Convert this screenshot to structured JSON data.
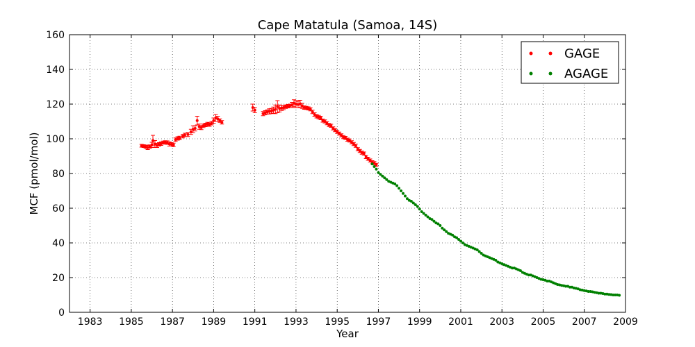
{
  "chart_data": {
    "type": "scatter",
    "title": "Cape Matatula (Samoa, 14S)",
    "xlabel": "Year",
    "ylabel": "MCF (pmol/mol)",
    "xlim": [
      1982.0,
      2009.0
    ],
    "ylim": [
      0,
      160
    ],
    "xticks": [
      "1983",
      "1985",
      "1987",
      "1989",
      "1991",
      "1993",
      "1995",
      "1997",
      "1999",
      "2001",
      "2003",
      "2005",
      "2007",
      "2009"
    ],
    "yticks": [
      "0",
      "20",
      "40",
      "60",
      "80",
      "100",
      "120",
      "140",
      "160"
    ],
    "grid": true,
    "legend_position": "top-right",
    "series": [
      {
        "name": "GAGE",
        "color": "#ff0000",
        "error_bars": true,
        "points": [
          {
            "x": 1985.5,
            "y": 96.0,
            "err": 0.8
          },
          {
            "x": 1985.6,
            "y": 95.8,
            "err": 0.8
          },
          {
            "x": 1985.7,
            "y": 95.4,
            "err": 1.0
          },
          {
            "x": 1985.8,
            "y": 95.0,
            "err": 1.2
          },
          {
            "x": 1985.9,
            "y": 95.5,
            "err": 1.0
          },
          {
            "x": 1986.0,
            "y": 96.5,
            "err": 1.5
          },
          {
            "x": 1986.05,
            "y": 99.0,
            "err": 3.0
          },
          {
            "x": 1986.15,
            "y": 97.0,
            "err": 2.0
          },
          {
            "x": 1986.25,
            "y": 96.2,
            "err": 1.2
          },
          {
            "x": 1986.35,
            "y": 96.8,
            "err": 1.0
          },
          {
            "x": 1986.45,
            "y": 97.2,
            "err": 1.0
          },
          {
            "x": 1986.55,
            "y": 97.8,
            "err": 0.9
          },
          {
            "x": 1986.65,
            "y": 98.0,
            "err": 0.9
          },
          {
            "x": 1986.75,
            "y": 97.8,
            "err": 1.0
          },
          {
            "x": 1986.85,
            "y": 97.0,
            "err": 1.2
          },
          {
            "x": 1986.95,
            "y": 96.8,
            "err": 1.0
          },
          {
            "x": 1987.05,
            "y": 96.5,
            "err": 1.0
          },
          {
            "x": 1987.15,
            "y": 99.5,
            "err": 1.0
          },
          {
            "x": 1987.25,
            "y": 100.2,
            "err": 1.0
          },
          {
            "x": 1987.35,
            "y": 100.5,
            "err": 1.0
          },
          {
            "x": 1987.5,
            "y": 101.5,
            "err": 1.0
          },
          {
            "x": 1987.6,
            "y": 102.2,
            "err": 1.0
          },
          {
            "x": 1987.75,
            "y": 102.5,
            "err": 1.2
          },
          {
            "x": 1987.9,
            "y": 104.0,
            "err": 1.5
          },
          {
            "x": 1988.0,
            "y": 105.5,
            "err": 2.0
          },
          {
            "x": 1988.1,
            "y": 106.0,
            "err": 1.5
          },
          {
            "x": 1988.2,
            "y": 110.5,
            "err": 2.5
          },
          {
            "x": 1988.3,
            "y": 107.0,
            "err": 1.5
          },
          {
            "x": 1988.4,
            "y": 106.5,
            "err": 1.2
          },
          {
            "x": 1988.5,
            "y": 107.5,
            "err": 1.0
          },
          {
            "x": 1988.6,
            "y": 108.0,
            "err": 1.0
          },
          {
            "x": 1988.7,
            "y": 108.5,
            "err": 1.0
          },
          {
            "x": 1988.8,
            "y": 108.2,
            "err": 1.0
          },
          {
            "x": 1988.9,
            "y": 109.0,
            "err": 1.0
          },
          {
            "x": 1989.0,
            "y": 110.5,
            "err": 1.5
          },
          {
            "x": 1989.1,
            "y": 112.0,
            "err": 2.0
          },
          {
            "x": 1989.2,
            "y": 111.5,
            "err": 1.5
          },
          {
            "x": 1989.3,
            "y": 110.5,
            "err": 1.0
          },
          {
            "x": 1989.4,
            "y": 109.5,
            "err": 1.0
          },
          {
            "x": 1990.9,
            "y": 118.0,
            "err": 2.0
          },
          {
            "x": 1991.0,
            "y": 116.5,
            "err": 1.5
          },
          {
            "x": 1991.4,
            "y": 114.5,
            "err": 1.2
          },
          {
            "x": 1991.5,
            "y": 115.0,
            "err": 1.2
          },
          {
            "x": 1991.6,
            "y": 115.5,
            "err": 1.2
          },
          {
            "x": 1991.7,
            "y": 115.8,
            "err": 1.5
          },
          {
            "x": 1991.8,
            "y": 116.0,
            "err": 1.5
          },
          {
            "x": 1991.9,
            "y": 116.5,
            "err": 1.8
          },
          {
            "x": 1992.0,
            "y": 117.0,
            "err": 2.5
          },
          {
            "x": 1992.1,
            "y": 118.5,
            "err": 3.5
          },
          {
            "x": 1992.2,
            "y": 117.5,
            "err": 2.0
          },
          {
            "x": 1992.3,
            "y": 117.8,
            "err": 1.5
          },
          {
            "x": 1992.4,
            "y": 118.0,
            "err": 1.2
          },
          {
            "x": 1992.5,
            "y": 118.5,
            "err": 1.0
          },
          {
            "x": 1992.6,
            "y": 118.8,
            "err": 1.0
          },
          {
            "x": 1992.7,
            "y": 119.0,
            "err": 1.0
          },
          {
            "x": 1992.8,
            "y": 119.5,
            "err": 1.5
          },
          {
            "x": 1992.9,
            "y": 120.5,
            "err": 2.0
          },
          {
            "x": 1993.0,
            "y": 120.0,
            "err": 2.0
          },
          {
            "x": 1993.1,
            "y": 119.8,
            "err": 1.8
          },
          {
            "x": 1993.2,
            "y": 120.2,
            "err": 2.0
          },
          {
            "x": 1993.3,
            "y": 119.0,
            "err": 1.5
          },
          {
            "x": 1993.4,
            "y": 118.0,
            "err": 1.0
          },
          {
            "x": 1993.5,
            "y": 117.8,
            "err": 0.9
          },
          {
            "x": 1993.6,
            "y": 117.5,
            "err": 0.9
          },
          {
            "x": 1993.7,
            "y": 117.0,
            "err": 0.9
          },
          {
            "x": 1993.8,
            "y": 115.5,
            "err": 1.0
          },
          {
            "x": 1993.9,
            "y": 114.0,
            "err": 1.0
          },
          {
            "x": 1994.0,
            "y": 113.0,
            "err": 1.0
          },
          {
            "x": 1994.1,
            "y": 112.5,
            "err": 1.0
          },
          {
            "x": 1994.2,
            "y": 112.0,
            "err": 1.0
          },
          {
            "x": 1994.3,
            "y": 110.5,
            "err": 0.9
          },
          {
            "x": 1994.4,
            "y": 110.0,
            "err": 0.9
          },
          {
            "x": 1994.5,
            "y": 109.0,
            "err": 0.9
          },
          {
            "x": 1994.6,
            "y": 108.0,
            "err": 0.9
          },
          {
            "x": 1994.7,
            "y": 107.5,
            "err": 0.9
          },
          {
            "x": 1994.8,
            "y": 106.0,
            "err": 0.9
          },
          {
            "x": 1994.9,
            "y": 105.0,
            "err": 0.9
          },
          {
            "x": 1995.0,
            "y": 104.0,
            "err": 0.9
          },
          {
            "x": 1995.1,
            "y": 103.0,
            "err": 0.9
          },
          {
            "x": 1995.2,
            "y": 102.0,
            "err": 0.9
          },
          {
            "x": 1995.3,
            "y": 101.0,
            "err": 0.9
          },
          {
            "x": 1995.4,
            "y": 100.5,
            "err": 0.9
          },
          {
            "x": 1995.5,
            "y": 99.5,
            "err": 0.9
          },
          {
            "x": 1995.6,
            "y": 99.0,
            "err": 0.9
          },
          {
            "x": 1995.7,
            "y": 98.0,
            "err": 0.9
          },
          {
            "x": 1995.8,
            "y": 97.0,
            "err": 0.9
          },
          {
            "x": 1995.9,
            "y": 96.0,
            "err": 0.9
          },
          {
            "x": 1996.0,
            "y": 94.0,
            "err": 0.9
          },
          {
            "x": 1996.1,
            "y": 93.0,
            "err": 0.9
          },
          {
            "x": 1996.2,
            "y": 92.0,
            "err": 0.9
          },
          {
            "x": 1996.3,
            "y": 91.5,
            "err": 0.9
          },
          {
            "x": 1996.4,
            "y": 89.5,
            "err": 0.9
          },
          {
            "x": 1996.5,
            "y": 88.5,
            "err": 0.9
          },
          {
            "x": 1996.6,
            "y": 87.5,
            "err": 0.9
          },
          {
            "x": 1996.7,
            "y": 86.5,
            "err": 0.9
          },
          {
            "x": 1996.8,
            "y": 86.0,
            "err": 0.9
          },
          {
            "x": 1996.9,
            "y": 85.0,
            "err": 0.9
          }
        ]
      },
      {
        "name": "AGAGE",
        "color": "#008000",
        "error_bars": false,
        "points": [
          {
            "x": 1996.7,
            "y": 85.5
          },
          {
            "x": 1996.8,
            "y": 84.0
          },
          {
            "x": 1996.9,
            "y": 82.5
          },
          {
            "x": 1997.0,
            "y": 80.5
          },
          {
            "x": 1997.1,
            "y": 79.5
          },
          {
            "x": 1997.2,
            "y": 78.5
          },
          {
            "x": 1997.3,
            "y": 77.5
          },
          {
            "x": 1997.4,
            "y": 76.5
          },
          {
            "x": 1997.5,
            "y": 75.5
          },
          {
            "x": 1997.6,
            "y": 75.0
          },
          {
            "x": 1997.7,
            "y": 74.5
          },
          {
            "x": 1997.8,
            "y": 74.0
          },
          {
            "x": 1997.9,
            "y": 73.0
          },
          {
            "x": 1998.0,
            "y": 71.5
          },
          {
            "x": 1998.1,
            "y": 70.0
          },
          {
            "x": 1998.2,
            "y": 68.5
          },
          {
            "x": 1998.3,
            "y": 67.0
          },
          {
            "x": 1998.4,
            "y": 65.5
          },
          {
            "x": 1998.5,
            "y": 64.5
          },
          {
            "x": 1998.6,
            "y": 64.0
          },
          {
            "x": 1998.7,
            "y": 63.0
          },
          {
            "x": 1998.8,
            "y": 62.0
          },
          {
            "x": 1998.9,
            "y": 61.0
          },
          {
            "x": 1999.0,
            "y": 59.5
          },
          {
            "x": 1999.1,
            "y": 58.0
          },
          {
            "x": 1999.2,
            "y": 57.0
          },
          {
            "x": 1999.3,
            "y": 56.0
          },
          {
            "x": 1999.4,
            "y": 55.0
          },
          {
            "x": 1999.5,
            "y": 54.0
          },
          {
            "x": 1999.6,
            "y": 53.5
          },
          {
            "x": 1999.7,
            "y": 52.5
          },
          {
            "x": 1999.8,
            "y": 51.5
          },
          {
            "x": 1999.9,
            "y": 51.0
          },
          {
            "x": 2000.0,
            "y": 50.0
          },
          {
            "x": 2000.1,
            "y": 48.5
          },
          {
            "x": 2000.2,
            "y": 47.5
          },
          {
            "x": 2000.3,
            "y": 46.5
          },
          {
            "x": 2000.4,
            "y": 45.5
          },
          {
            "x": 2000.5,
            "y": 45.0
          },
          {
            "x": 2000.6,
            "y": 44.5
          },
          {
            "x": 2000.7,
            "y": 43.5
          },
          {
            "x": 2000.8,
            "y": 43.0
          },
          {
            "x": 2000.9,
            "y": 42.0
          },
          {
            "x": 2001.0,
            "y": 41.0
          },
          {
            "x": 2001.1,
            "y": 40.0
          },
          {
            "x": 2001.2,
            "y": 39.0
          },
          {
            "x": 2001.3,
            "y": 38.5
          },
          {
            "x": 2001.4,
            "y": 38.0
          },
          {
            "x": 2001.5,
            "y": 37.5
          },
          {
            "x": 2001.6,
            "y": 37.0
          },
          {
            "x": 2001.7,
            "y": 36.5
          },
          {
            "x": 2001.8,
            "y": 36.0
          },
          {
            "x": 2001.9,
            "y": 35.0
          },
          {
            "x": 2002.0,
            "y": 34.0
          },
          {
            "x": 2002.1,
            "y": 33.0
          },
          {
            "x": 2002.2,
            "y": 32.5
          },
          {
            "x": 2002.3,
            "y": 32.0
          },
          {
            "x": 2002.4,
            "y": 31.5
          },
          {
            "x": 2002.5,
            "y": 31.0
          },
          {
            "x": 2002.6,
            "y": 30.5
          },
          {
            "x": 2002.7,
            "y": 30.0
          },
          {
            "x": 2002.8,
            "y": 29.0
          },
          {
            "x": 2002.9,
            "y": 28.5
          },
          {
            "x": 2003.0,
            "y": 28.0
          },
          {
            "x": 2003.1,
            "y": 27.5
          },
          {
            "x": 2003.2,
            "y": 27.0
          },
          {
            "x": 2003.3,
            "y": 26.5
          },
          {
            "x": 2003.4,
            "y": 26.0
          },
          {
            "x": 2003.5,
            "y": 25.5
          },
          {
            "x": 2003.6,
            "y": 25.5
          },
          {
            "x": 2003.7,
            "y": 25.0
          },
          {
            "x": 2003.8,
            "y": 24.5
          },
          {
            "x": 2003.9,
            "y": 24.0
          },
          {
            "x": 2004.0,
            "y": 23.0
          },
          {
            "x": 2004.1,
            "y": 22.5
          },
          {
            "x": 2004.2,
            "y": 22.0
          },
          {
            "x": 2004.3,
            "y": 21.5
          },
          {
            "x": 2004.4,
            "y": 21.5
          },
          {
            "x": 2004.5,
            "y": 21.0
          },
          {
            "x": 2004.6,
            "y": 20.5
          },
          {
            "x": 2004.7,
            "y": 20.0
          },
          {
            "x": 2004.8,
            "y": 19.5
          },
          {
            "x": 2004.9,
            "y": 19.0
          },
          {
            "x": 2005.0,
            "y": 18.8
          },
          {
            "x": 2005.1,
            "y": 18.5
          },
          {
            "x": 2005.2,
            "y": 18.0
          },
          {
            "x": 2005.3,
            "y": 18.0
          },
          {
            "x": 2005.4,
            "y": 17.5
          },
          {
            "x": 2005.5,
            "y": 17.0
          },
          {
            "x": 2005.6,
            "y": 16.5
          },
          {
            "x": 2005.7,
            "y": 16.0
          },
          {
            "x": 2005.8,
            "y": 15.8
          },
          {
            "x": 2005.9,
            "y": 15.5
          },
          {
            "x": 2006.0,
            "y": 15.3
          },
          {
            "x": 2006.1,
            "y": 15.0
          },
          {
            "x": 2006.2,
            "y": 15.0
          },
          {
            "x": 2006.3,
            "y": 14.5
          },
          {
            "x": 2006.4,
            "y": 14.5
          },
          {
            "x": 2006.5,
            "y": 14.0
          },
          {
            "x": 2006.6,
            "y": 13.8
          },
          {
            "x": 2006.7,
            "y": 13.5
          },
          {
            "x": 2006.8,
            "y": 13.0
          },
          {
            "x": 2006.9,
            "y": 12.8
          },
          {
            "x": 2007.0,
            "y": 12.5
          },
          {
            "x": 2007.1,
            "y": 12.3
          },
          {
            "x": 2007.2,
            "y": 12.0
          },
          {
            "x": 2007.3,
            "y": 12.0
          },
          {
            "x": 2007.4,
            "y": 11.8
          },
          {
            "x": 2007.5,
            "y": 11.5
          },
          {
            "x": 2007.6,
            "y": 11.3
          },
          {
            "x": 2007.7,
            "y": 11.0
          },
          {
            "x": 2007.8,
            "y": 11.0
          },
          {
            "x": 2007.9,
            "y": 10.8
          },
          {
            "x": 2008.0,
            "y": 10.5
          },
          {
            "x": 2008.1,
            "y": 10.5
          },
          {
            "x": 2008.2,
            "y": 10.3
          },
          {
            "x": 2008.3,
            "y": 10.2
          },
          {
            "x": 2008.4,
            "y": 10.0
          },
          {
            "x": 2008.5,
            "y": 10.0
          },
          {
            "x": 2008.6,
            "y": 10.0
          },
          {
            "x": 2008.7,
            "y": 9.8
          }
        ]
      }
    ]
  }
}
